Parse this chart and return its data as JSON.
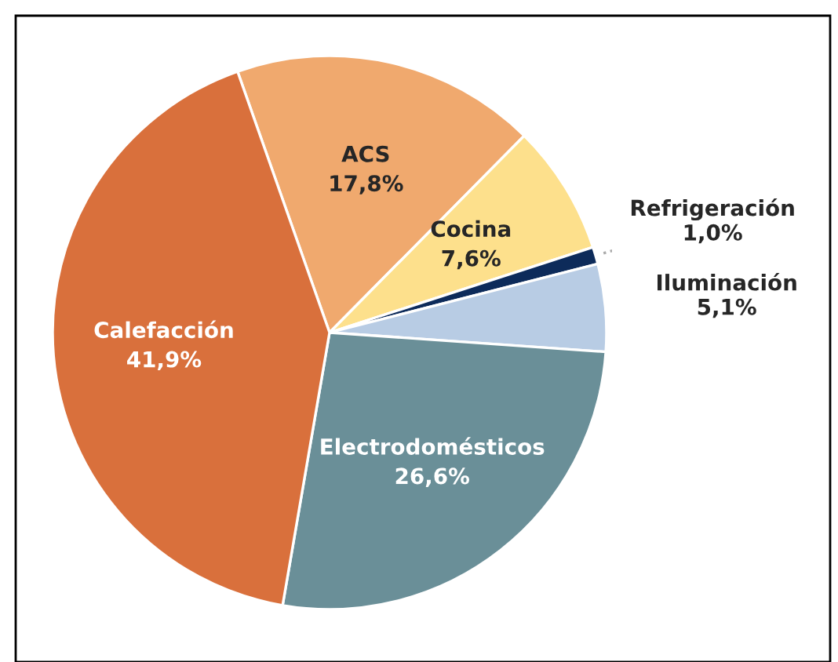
{
  "chart_data": {
    "type": "pie",
    "categories": [
      "ACS",
      "Cocina",
      "Refrigeración",
      "Iluminación",
      "Electrodomésticos",
      "Calefacción"
    ],
    "values": [
      17.8,
      7.6,
      1.0,
      5.1,
      26.6,
      41.9
    ],
    "value_labels": [
      "17,8%",
      "7,6%",
      "1,0%",
      "5,1%",
      "26,6%",
      "41,9%"
    ],
    "colors": [
      "#f0a96e",
      "#fde08c",
      "#0d2b5a",
      "#b8cce4",
      "#6a8f98",
      "#d9703c"
    ]
  }
}
